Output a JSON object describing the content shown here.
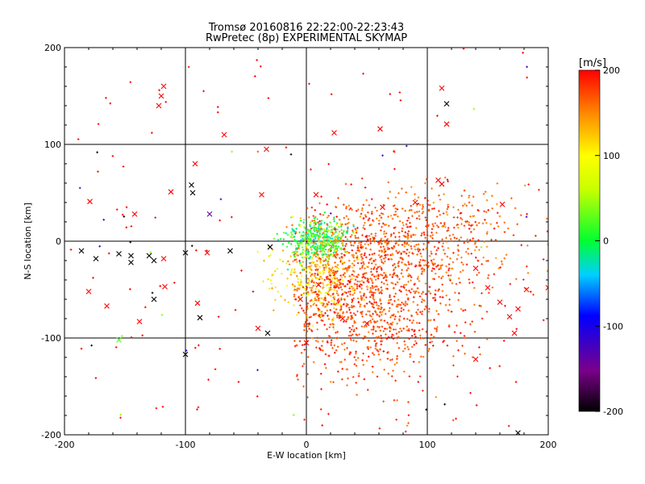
{
  "chart_data": {
    "type": "scatter",
    "title": "Tromsø 20160816 22:22:00-22:23:43",
    "subtitle": "RwPretec (8p) EXPERIMENTAL SKYMAP",
    "xlabel": "E-W location [km]",
    "ylabel": "N-S location [km]",
    "xlim": [
      -200,
      200
    ],
    "ylim": [
      -200,
      200
    ],
    "x_ticks": [
      "-200",
      "-100",
      "0",
      "100",
      "200"
    ],
    "y_ticks": [
      "-200",
      "-100",
      "0",
      "100",
      "200"
    ],
    "grid": "major gridlines at -100, 0, 100",
    "colorbar": {
      "label": "[m/s]",
      "range": [
        -200,
        200
      ],
      "ticks": [
        "200",
        "100",
        "0",
        "-100",
        "-200"
      ],
      "colormap": "rainbow (black-purple-blue-cyan-green-yellow-red)"
    },
    "markers": {
      "cross": "x markers (larger echoes)",
      "dot": "small + markers"
    },
    "crosses": [
      {
        "x": -118,
        "y": 160,
        "v": 200
      },
      {
        "x": -120,
        "y": 150,
        "v": 200
      },
      {
        "x": -122,
        "y": 140,
        "v": 200
      },
      {
        "x": 112,
        "y": 158,
        "v": 200
      },
      {
        "x": 116,
        "y": 142,
        "v": -200
      },
      {
        "x": 116,
        "y": 121,
        "v": 200
      },
      {
        "x": 61,
        "y": 116,
        "v": 200
      },
      {
        "x": 23,
        "y": 112,
        "v": 200
      },
      {
        "x": -68,
        "y": 110,
        "v": 200
      },
      {
        "x": -33,
        "y": 95,
        "v": 200
      },
      {
        "x": -92,
        "y": 80,
        "v": 200
      },
      {
        "x": -179,
        "y": 41,
        "v": 200
      },
      {
        "x": -95,
        "y": 58,
        "v": -200
      },
      {
        "x": -94,
        "y": 50,
        "v": -200
      },
      {
        "x": -112,
        "y": 51,
        "v": 200
      },
      {
        "x": -142,
        "y": 28,
        "v": 200
      },
      {
        "x": -80,
        "y": 28,
        "v": -140
      },
      {
        "x": -37,
        "y": 48,
        "v": 200
      },
      {
        "x": 8,
        "y": 48,
        "v": 200
      },
      {
        "x": 63,
        "y": 35,
        "v": 200
      },
      {
        "x": 109,
        "y": 63,
        "v": 200
      },
      {
        "x": 112,
        "y": 59,
        "v": 200
      },
      {
        "x": 162,
        "y": 38,
        "v": 200
      },
      {
        "x": 90,
        "y": 40,
        "v": 200
      },
      {
        "x": -186,
        "y": -10,
        "v": -200
      },
      {
        "x": -174,
        "y": -18,
        "v": -200
      },
      {
        "x": -155,
        "y": -13,
        "v": -200
      },
      {
        "x": -145,
        "y": -15,
        "v": -200
      },
      {
        "x": -145,
        "y": -22,
        "v": -200
      },
      {
        "x": -130,
        "y": -15,
        "v": -200
      },
      {
        "x": -126,
        "y": -20,
        "v": -200
      },
      {
        "x": -118,
        "y": -18,
        "v": 200
      },
      {
        "x": -100,
        "y": -12,
        "v": -200
      },
      {
        "x": -82,
        "y": -12,
        "v": 200
      },
      {
        "x": -63,
        "y": -10,
        "v": -200
      },
      {
        "x": -30,
        "y": -6,
        "v": -200
      },
      {
        "x": -180,
        "y": -52,
        "v": 200
      },
      {
        "x": -165,
        "y": -67,
        "v": 200
      },
      {
        "x": -126,
        "y": -60,
        "v": -200
      },
      {
        "x": -117,
        "y": -47,
        "v": 200
      },
      {
        "x": -90,
        "y": -64,
        "v": 200
      },
      {
        "x": -88,
        "y": -79,
        "v": -200
      },
      {
        "x": -138,
        "y": -83,
        "v": 200
      },
      {
        "x": -155,
        "y": -102,
        "v": 20
      },
      {
        "x": -100,
        "y": -117,
        "v": -200
      },
      {
        "x": -40,
        "y": -90,
        "v": 200
      },
      {
        "x": -32,
        "y": -95,
        "v": -200
      },
      {
        "x": 0,
        "y": -105,
        "v": 200
      },
      {
        "x": 140,
        "y": -28,
        "v": 200
      },
      {
        "x": 150,
        "y": -48,
        "v": 200
      },
      {
        "x": 160,
        "y": -63,
        "v": 200
      },
      {
        "x": 168,
        "y": -78,
        "v": 200
      },
      {
        "x": 175,
        "y": -70,
        "v": 200
      },
      {
        "x": 182,
        "y": -50,
        "v": 200
      },
      {
        "x": 172,
        "y": -95,
        "v": 200
      },
      {
        "x": 140,
        "y": -122,
        "v": 200
      },
      {
        "x": 175,
        "y": -198,
        "v": -200
      },
      {
        "x": 200,
        "y": -48,
        "v": 200
      },
      {
        "x": 20,
        "y": -30,
        "v": 150
      },
      {
        "x": 10,
        "y": -45,
        "v": 200
      },
      {
        "x": -5,
        "y": -60,
        "v": 200
      },
      {
        "x": 30,
        "y": -80,
        "v": 200
      },
      {
        "x": 50,
        "y": -85,
        "v": 200
      }
    ]
  }
}
